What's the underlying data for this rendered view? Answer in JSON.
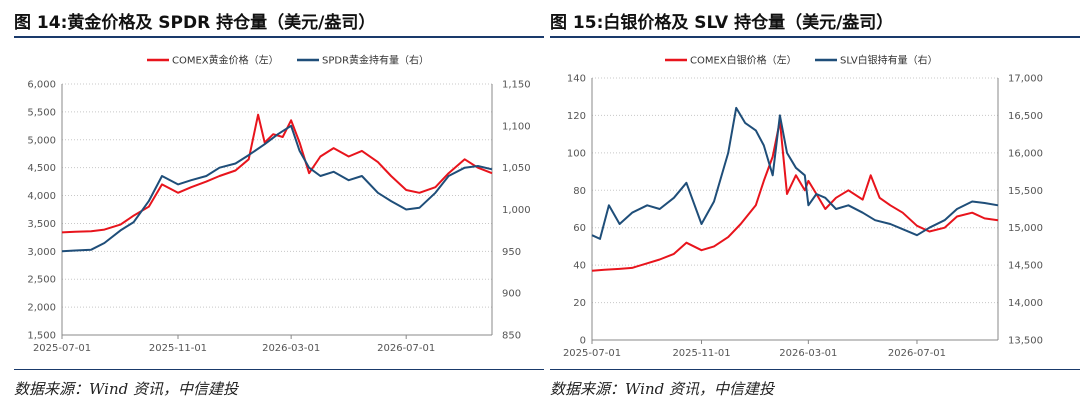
{
  "source_label": "数据来源：Wind 资讯，中信建投",
  "colors": {
    "red": "#e8141c",
    "blue": "#1f4e79",
    "rule": "#1a3a6b"
  },
  "chart_data": [
    {
      "type": "line",
      "title": "图 14:黄金价格及 SPDR 持仓量（美元/盎司）",
      "x_ticks": [
        "2025-07-01",
        "2025-11-01",
        "2026-03-01",
        "2026-07-01"
      ],
      "x_range": [
        "2025-07-01",
        "2026-09-30"
      ],
      "y_left": {
        "min": 1500,
        "max": 6000,
        "ticks": [
          "1,500",
          "2,000",
          "2,500",
          "3,000",
          "3,500",
          "4,000",
          "4,500",
          "5,000",
          "5,500",
          "6,000"
        ]
      },
      "y_right": {
        "min": 850,
        "max": 1150,
        "ticks": [
          "850",
          "900",
          "950",
          "1,000",
          "1,050",
          "1,100",
          "1,150"
        ]
      },
      "grid": true,
      "legend_position": "top-center",
      "series": [
        {
          "name": "COMEX黄金价格（左）",
          "axis": "left",
          "color": "#e8141c",
          "points": [
            [
              "2025-07-01",
              3340
            ],
            [
              "2025-07-15",
              3350
            ],
            [
              "2025-08-01",
              3360
            ],
            [
              "2025-08-15",
              3390
            ],
            [
              "2025-09-01",
              3480
            ],
            [
              "2025-09-15",
              3640
            ],
            [
              "2025-10-01",
              3800
            ],
            [
              "2025-10-15",
              4200
            ],
            [
              "2025-11-01",
              4050
            ],
            [
              "2025-11-15",
              4150
            ],
            [
              "2025-12-01",
              4250
            ],
            [
              "2025-12-15",
              4350
            ],
            [
              "2026-01-01",
              4450
            ],
            [
              "2026-01-15",
              4650
            ],
            [
              "2026-01-25",
              5450
            ],
            [
              "2026-02-01",
              4950
            ],
            [
              "2026-02-10",
              5100
            ],
            [
              "2026-02-20",
              5050
            ],
            [
              "2026-03-01",
              5350
            ],
            [
              "2026-03-10",
              4950
            ],
            [
              "2026-03-20",
              4400
            ],
            [
              "2026-04-01",
              4700
            ],
            [
              "2026-04-15",
              4850
            ],
            [
              "2026-05-01",
              4700
            ],
            [
              "2026-05-15",
              4800
            ],
            [
              "2026-06-01",
              4600
            ],
            [
              "2026-06-15",
              4350
            ],
            [
              "2026-07-01",
              4100
            ],
            [
              "2026-07-15",
              4050
            ],
            [
              "2026-08-01",
              4150
            ],
            [
              "2026-08-15",
              4400
            ],
            [
              "2026-09-01",
              4650
            ],
            [
              "2026-09-15",
              4500
            ],
            [
              "2026-09-30",
              4400
            ]
          ]
        },
        {
          "name": "SPDR黄金持有量（右）",
          "axis": "right",
          "color": "#1f4e79",
          "points": [
            [
              "2025-07-01",
              950
            ],
            [
              "2025-07-15",
              951
            ],
            [
              "2025-08-01",
              952
            ],
            [
              "2025-08-15",
              960
            ],
            [
              "2025-09-01",
              975
            ],
            [
              "2025-09-15",
              985
            ],
            [
              "2025-10-01",
              1010
            ],
            [
              "2025-10-15",
              1040
            ],
            [
              "2025-11-01",
              1030
            ],
            [
              "2025-11-15",
              1035
            ],
            [
              "2025-12-01",
              1040
            ],
            [
              "2025-12-15",
              1050
            ],
            [
              "2026-01-01",
              1055
            ],
            [
              "2026-01-15",
              1065
            ],
            [
              "2026-02-01",
              1078
            ],
            [
              "2026-02-15",
              1090
            ],
            [
              "2026-03-01",
              1100
            ],
            [
              "2026-03-10",
              1070
            ],
            [
              "2026-03-20",
              1050
            ],
            [
              "2026-04-01",
              1040
            ],
            [
              "2026-04-15",
              1045
            ],
            [
              "2026-05-01",
              1035
            ],
            [
              "2026-05-15",
              1040
            ],
            [
              "2026-06-01",
              1020
            ],
            [
              "2026-06-15",
              1010
            ],
            [
              "2026-07-01",
              1000
            ],
            [
              "2026-07-15",
              1002
            ],
            [
              "2026-08-01",
              1020
            ],
            [
              "2026-08-15",
              1040
            ],
            [
              "2026-09-01",
              1050
            ],
            [
              "2026-09-15",
              1052
            ],
            [
              "2026-09-30",
              1048
            ]
          ]
        }
      ]
    },
    {
      "type": "line",
      "title": "图 15:白银价格及 SLV 持仓量（美元/盎司）",
      "x_ticks": [
        "2025-07-01",
        "2025-11-01",
        "2026-03-01",
        "2026-07-01"
      ],
      "x_range": [
        "2025-07-01",
        "2026-09-30"
      ],
      "y_left": {
        "min": 0,
        "max": 140,
        "ticks": [
          "0",
          "20",
          "40",
          "60",
          "80",
          "100",
          "120",
          "140"
        ]
      },
      "y_right": {
        "min": 13500,
        "max": 17000,
        "ticks": [
          "13,500",
          "14,000",
          "14,500",
          "15,000",
          "15,500",
          "16,000",
          "16,500",
          "17,000"
        ]
      },
      "grid": true,
      "legend_position": "top-center",
      "series": [
        {
          "name": "COMEX白银价格（左）",
          "axis": "left",
          "color": "#e8141c",
          "points": [
            [
              "2025-07-01",
              37
            ],
            [
              "2025-07-15",
              37.5
            ],
            [
              "2025-08-01",
              38
            ],
            [
              "2025-08-15",
              38.5
            ],
            [
              "2025-09-01",
              41
            ],
            [
              "2025-09-15",
              43
            ],
            [
              "2025-10-01",
              46
            ],
            [
              "2025-10-15",
              52
            ],
            [
              "2025-11-01",
              48
            ],
            [
              "2025-11-15",
              50
            ],
            [
              "2025-12-01",
              55
            ],
            [
              "2025-12-15",
              62
            ],
            [
              "2026-01-01",
              72
            ],
            [
              "2026-01-10",
              85
            ],
            [
              "2026-01-20",
              98
            ],
            [
              "2026-01-28",
              117
            ],
            [
              "2026-02-05",
              78
            ],
            [
              "2026-02-15",
              88
            ],
            [
              "2026-02-25",
              80
            ],
            [
              "2026-03-01",
              85
            ],
            [
              "2026-03-10",
              78
            ],
            [
              "2026-03-20",
              70
            ],
            [
              "2026-04-01",
              76
            ],
            [
              "2026-04-15",
              80
            ],
            [
              "2026-05-01",
              75
            ],
            [
              "2026-05-10",
              88
            ],
            [
              "2026-05-20",
              76
            ],
            [
              "2026-06-01",
              72
            ],
            [
              "2026-06-15",
              68
            ],
            [
              "2026-07-01",
              61
            ],
            [
              "2026-07-15",
              58
            ],
            [
              "2026-08-01",
              60
            ],
            [
              "2026-08-15",
              66
            ],
            [
              "2026-09-01",
              68
            ],
            [
              "2026-09-15",
              65
            ],
            [
              "2026-09-30",
              64
            ]
          ]
        },
        {
          "name": "SLV白银持有量（右）",
          "axis": "right",
          "color": "#1f4e79",
          "points": [
            [
              "2025-07-01",
              14900
            ],
            [
              "2025-07-10",
              14850
            ],
            [
              "2025-07-20",
              15300
            ],
            [
              "2025-08-01",
              15050
            ],
            [
              "2025-08-15",
              15200
            ],
            [
              "2025-09-01",
              15300
            ],
            [
              "2025-09-15",
              15250
            ],
            [
              "2025-10-01",
              15400
            ],
            [
              "2025-10-15",
              15600
            ],
            [
              "2025-11-01",
              15050
            ],
            [
              "2025-11-15",
              15350
            ],
            [
              "2025-12-01",
              16000
            ],
            [
              "2025-12-10",
              16600
            ],
            [
              "2025-12-20",
              16400
            ],
            [
              "2026-01-01",
              16300
            ],
            [
              "2026-01-10",
              16100
            ],
            [
              "2026-01-20",
              15700
            ],
            [
              "2026-01-28",
              16500
            ],
            [
              "2026-02-05",
              16000
            ],
            [
              "2026-02-15",
              15800
            ],
            [
              "2026-02-25",
              15700
            ],
            [
              "2026-03-01",
              15300
            ],
            [
              "2026-03-10",
              15450
            ],
            [
              "2026-03-20",
              15400
            ],
            [
              "2026-04-01",
              15250
            ],
            [
              "2026-04-15",
              15300
            ],
            [
              "2026-05-01",
              15200
            ],
            [
              "2026-05-15",
              15100
            ],
            [
              "2026-06-01",
              15050
            ],
            [
              "2026-06-15",
              14980
            ],
            [
              "2026-07-01",
              14900
            ],
            [
              "2026-07-15",
              15000
            ],
            [
              "2026-08-01",
              15100
            ],
            [
              "2026-08-15",
              15250
            ],
            [
              "2026-09-01",
              15350
            ],
            [
              "2026-09-15",
              15330
            ],
            [
              "2026-09-30",
              15300
            ]
          ]
        }
      ]
    }
  ]
}
